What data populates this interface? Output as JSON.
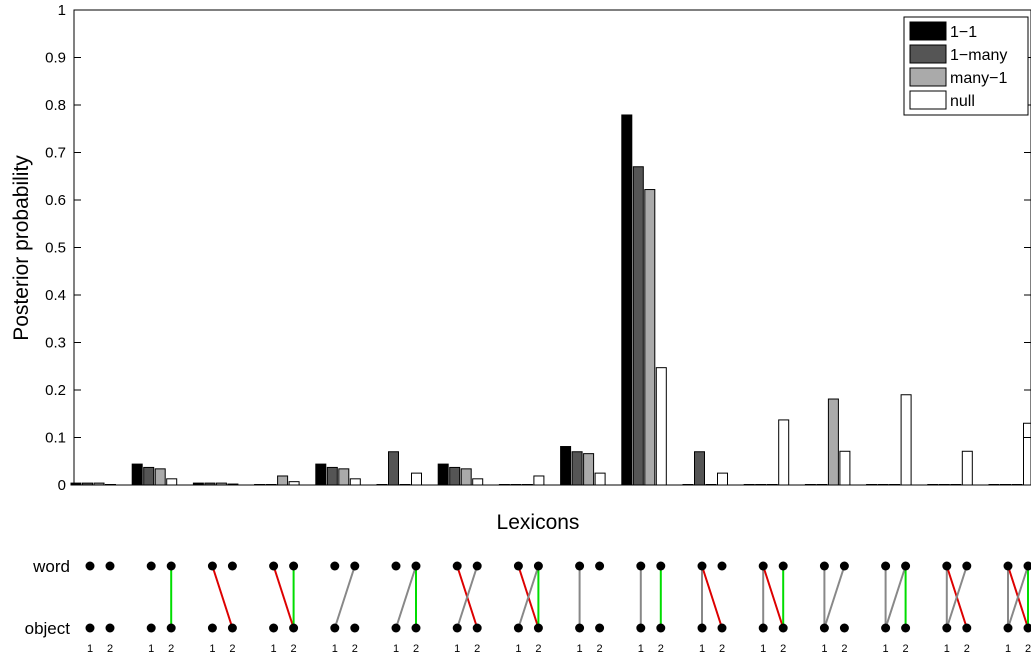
{
  "chart_data": {
    "type": "bar",
    "ylabel": "Posterior probability",
    "xlabel": "Lexicons",
    "ylim": [
      0,
      1
    ],
    "yticks": [
      "0",
      "0.1",
      "0.2",
      "0.3",
      "0.4",
      "0.5",
      "0.6",
      "0.7",
      "0.8",
      "0.9",
      "1"
    ],
    "legend_position": "top-right",
    "series": [
      {
        "name": "1−1",
        "color": "#000000",
        "values": [
          0.004,
          0.044,
          0.004,
          0.001,
          0.044,
          0.001,
          0.044,
          0.001,
          0.081,
          0.779,
          0.001,
          0.001,
          0.001,
          0.001,
          0.001,
          0.001
        ]
      },
      {
        "name": "1−many",
        "color": "#555555",
        "values": [
          0.004,
          0.037,
          0.004,
          0.001,
          0.037,
          0.07,
          0.037,
          0.001,
          0.07,
          0.67,
          0.07,
          0.001,
          0.001,
          0.001,
          0.001,
          0.001
        ]
      },
      {
        "name": "many−1",
        "color": "#aaaaaa",
        "values": [
          0.004,
          0.034,
          0.004,
          0.019,
          0.034,
          0.001,
          0.034,
          0.001,
          0.066,
          0.622,
          0.001,
          0.001,
          0.181,
          0.001,
          0.001,
          0.001
        ]
      },
      {
        "name": "null",
        "color": "#ffffff",
        "values": [
          0.001,
          0.013,
          0.002,
          0.007,
          0.013,
          0.025,
          0.013,
          0.019,
          0.025,
          0.247,
          0.025,
          0.137,
          0.071,
          0.19,
          0.071,
          0.13
        ]
      }
    ]
  },
  "lexicon_diagram": {
    "word_label": "word",
    "object_label": "object",
    "index_labels": [
      "1",
      "2"
    ],
    "colors": {
      "correct": "#00dd00",
      "wrong": "#dd0000",
      "other": "#888888"
    },
    "lexicons": [
      [],
      [
        [
          2,
          2,
          "correct"
        ]
      ],
      [
        [
          1,
          2,
          "wrong"
        ]
      ],
      [
        [
          1,
          2,
          "wrong"
        ],
        [
          2,
          2,
          "correct"
        ]
      ],
      [
        [
          2,
          1,
          "other"
        ]
      ],
      [
        [
          2,
          1,
          "other"
        ],
        [
          2,
          2,
          "correct"
        ]
      ],
      [
        [
          1,
          2,
          "wrong"
        ],
        [
          2,
          1,
          "other"
        ]
      ],
      [
        [
          1,
          2,
          "wrong"
        ],
        [
          2,
          1,
          "other"
        ],
        [
          2,
          2,
          "correct"
        ]
      ],
      [
        [
          1,
          1,
          "other"
        ]
      ],
      [
        [
          1,
          1,
          "other"
        ],
        [
          2,
          2,
          "correct"
        ]
      ],
      [
        [
          1,
          1,
          "other"
        ],
        [
          1,
          2,
          "wrong"
        ]
      ],
      [
        [
          1,
          1,
          "other"
        ],
        [
          1,
          2,
          "wrong"
        ],
        [
          2,
          2,
          "correct"
        ]
      ],
      [
        [
          1,
          1,
          "other"
        ],
        [
          2,
          1,
          "other"
        ]
      ],
      [
        [
          1,
          1,
          "other"
        ],
        [
          2,
          1,
          "other"
        ],
        [
          2,
          2,
          "correct"
        ]
      ],
      [
        [
          1,
          1,
          "other"
        ],
        [
          1,
          2,
          "wrong"
        ],
        [
          2,
          1,
          "other"
        ]
      ],
      [
        [
          1,
          1,
          "other"
        ],
        [
          1,
          2,
          "wrong"
        ],
        [
          2,
          1,
          "other"
        ],
        [
          2,
          2,
          "correct"
        ]
      ]
    ]
  }
}
